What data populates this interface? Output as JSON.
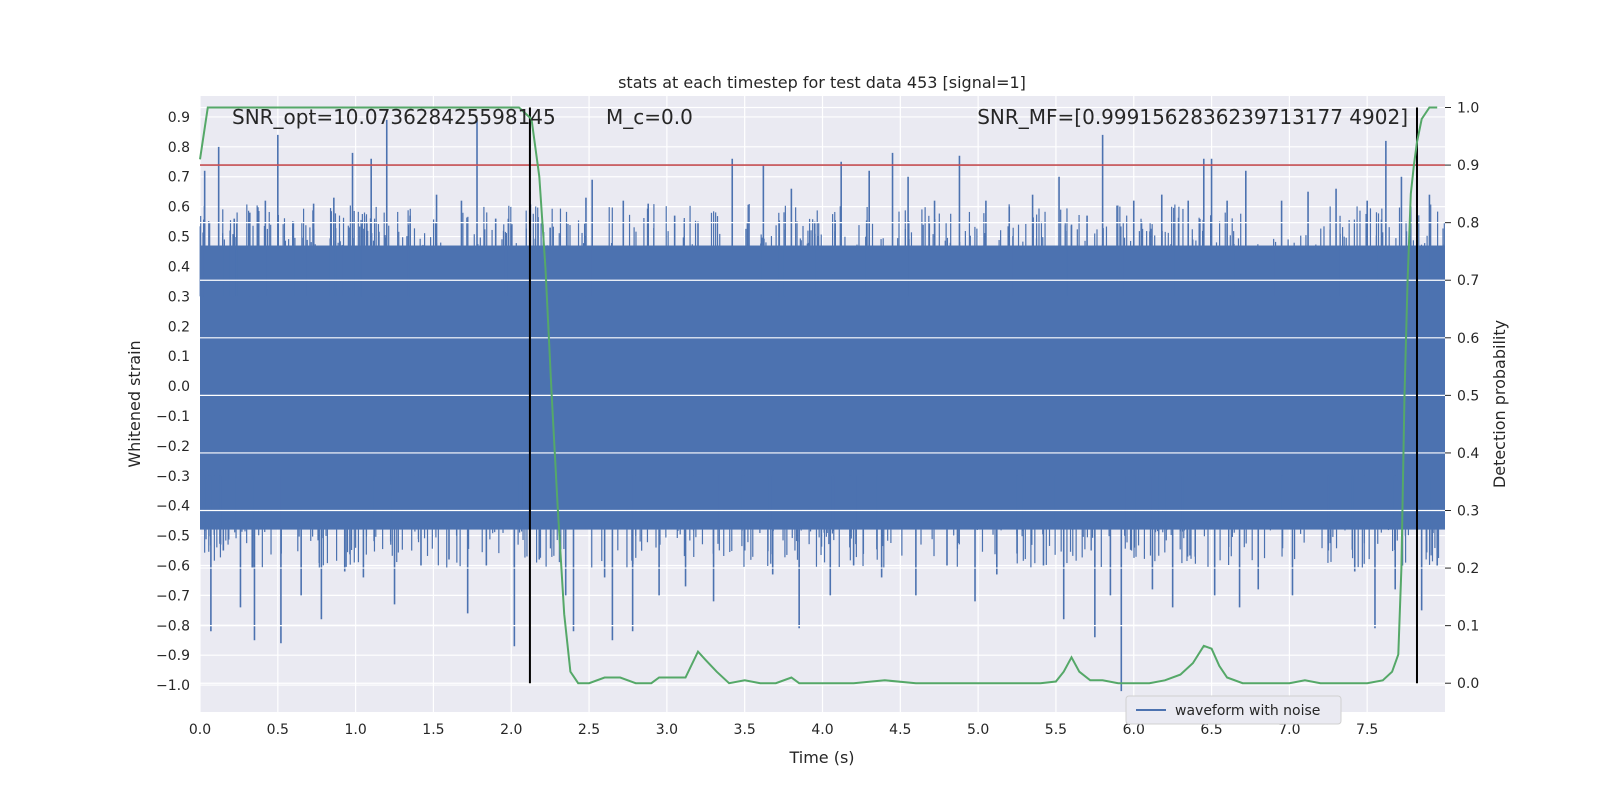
{
  "chart_data": {
    "type": "line",
    "title": "stats at each timestep for test data 453 [signal=1]",
    "xlabel": "Time (s)",
    "ylabel": "Whitened strain",
    "y2label": "Detection probability",
    "xlim": [
      0.0,
      8.0
    ],
    "ylim": [
      -1.09,
      0.97
    ],
    "y2lim": [
      -0.05,
      1.02
    ],
    "xticks": [
      "0.0",
      "0.5",
      "1.0",
      "1.5",
      "2.0",
      "2.5",
      "3.0",
      "3.5",
      "4.0",
      "4.5",
      "5.0",
      "5.5",
      "6.0",
      "6.5",
      "7.0",
      "7.5"
    ],
    "yticks": [
      "0.9",
      "0.8",
      "0.7",
      "0.6",
      "0.5",
      "0.4",
      "0.3",
      "0.2",
      "0.1",
      "0.0",
      "−0.1",
      "−0.2",
      "−0.3",
      "−0.4",
      "−0.5",
      "−0.6",
      "−0.7",
      "−0.8",
      "−0.9",
      "−1.0"
    ],
    "y2ticks": [
      "1.0",
      "0.9",
      "0.8",
      "0.7",
      "0.6",
      "0.5",
      "0.4",
      "0.3",
      "0.2",
      "0.1",
      "0.0"
    ],
    "annotations": {
      "snr_opt": "SNR_opt=10.073628425598145",
      "mc": "M_c=0.0",
      "overlap": "SNR_MF=[0.9991562836239713177 4902]"
    },
    "legend": {
      "label": "waveform with noise",
      "position": "lower right"
    },
    "threshold": 0.9,
    "vlines": [
      2.12,
      7.82
    ],
    "grid": true,
    "series": [
      {
        "name": "waveform with noise",
        "color": "#4c72b0",
        "axis": "left",
        "spikes": [
          {
            "x": 0.03,
            "y": 0.72
          },
          {
            "x": 0.05,
            "y": 0.45
          },
          {
            "x": 0.07,
            "y": -0.82
          },
          {
            "x": 0.12,
            "y": 0.8
          },
          {
            "x": 0.15,
            "y": -0.55
          },
          {
            "x": 0.22,
            "y": 0.56
          },
          {
            "x": 0.26,
            "y": -0.74
          },
          {
            "x": 0.32,
            "y": 0.58
          },
          {
            "x": 0.35,
            "y": -0.85
          },
          {
            "x": 0.42,
            "y": 0.62
          },
          {
            "x": 0.5,
            "y": 0.84
          },
          {
            "x": 0.52,
            "y": -0.86
          },
          {
            "x": 0.6,
            "y": 0.55
          },
          {
            "x": 0.65,
            "y": -0.7
          },
          {
            "x": 0.73,
            "y": 0.61
          },
          {
            "x": 0.78,
            "y": -0.78
          },
          {
            "x": 0.86,
            "y": 0.63
          },
          {
            "x": 0.93,
            "y": -0.62
          },
          {
            "x": 0.98,
            "y": 0.78
          },
          {
            "x": 1.05,
            "y": -0.64
          },
          {
            "x": 1.1,
            "y": 0.76
          },
          {
            "x": 1.2,
            "y": 0.89
          },
          {
            "x": 1.25,
            "y": -0.73
          },
          {
            "x": 1.35,
            "y": 0.57
          },
          {
            "x": 1.42,
            "y": -0.6
          },
          {
            "x": 1.52,
            "y": 0.64
          },
          {
            "x": 1.6,
            "y": -0.58
          },
          {
            "x": 1.68,
            "y": 0.62
          },
          {
            "x": 1.72,
            "y": -0.76
          },
          {
            "x": 1.78,
            "y": 0.89
          },
          {
            "x": 1.84,
            "y": -0.6
          },
          {
            "x": 1.9,
            "y": 0.56
          },
          {
            "x": 2.0,
            "y": 0.53
          },
          {
            "x": 2.02,
            "y": -0.87
          },
          {
            "x": 2.12,
            "y": 0.65
          },
          {
            "x": 2.18,
            "y": -0.58
          },
          {
            "x": 2.25,
            "y": 0.53
          },
          {
            "x": 2.35,
            "y": -0.7
          },
          {
            "x": 2.4,
            "y": -0.82
          },
          {
            "x": 2.48,
            "y": 0.63
          },
          {
            "x": 2.52,
            "y": 0.69
          },
          {
            "x": 2.6,
            "y": -0.64
          },
          {
            "x": 2.65,
            "y": -0.85
          },
          {
            "x": 2.72,
            "y": 0.62
          },
          {
            "x": 2.78,
            "y": -0.82
          },
          {
            "x": 2.88,
            "y": 0.61
          },
          {
            "x": 2.95,
            "y": -0.7
          },
          {
            "x": 3.05,
            "y": 0.57
          },
          {
            "x": 3.12,
            "y": -0.67
          },
          {
            "x": 3.2,
            "y": 0.55
          },
          {
            "x": 3.3,
            "y": -0.72
          },
          {
            "x": 3.42,
            "y": 0.76
          },
          {
            "x": 3.5,
            "y": -0.55
          },
          {
            "x": 3.62,
            "y": 0.74
          },
          {
            "x": 3.68,
            "y": -0.63
          },
          {
            "x": 3.8,
            "y": 0.66
          },
          {
            "x": 3.85,
            "y": -0.81
          },
          {
            "x": 3.95,
            "y": 0.55
          },
          {
            "x": 4.05,
            "y": -0.7
          },
          {
            "x": 4.12,
            "y": 0.75
          },
          {
            "x": 4.2,
            "y": -0.6
          },
          {
            "x": 4.3,
            "y": 0.72
          },
          {
            "x": 4.38,
            "y": -0.64
          },
          {
            "x": 4.45,
            "y": 0.78
          },
          {
            "x": 4.55,
            "y": 0.7
          },
          {
            "x": 4.6,
            "y": -0.7
          },
          {
            "x": 4.72,
            "y": 0.62
          },
          {
            "x": 4.8,
            "y": -0.6
          },
          {
            "x": 4.88,
            "y": 0.77
          },
          {
            "x": 4.98,
            "y": -0.72
          },
          {
            "x": 5.05,
            "y": 0.62
          },
          {
            "x": 5.12,
            "y": -0.63
          },
          {
            "x": 5.2,
            "y": 0.6
          },
          {
            "x": 5.25,
            "y": -0.56
          },
          {
            "x": 5.35,
            "y": 0.64
          },
          {
            "x": 5.42,
            "y": -0.6
          },
          {
            "x": 5.52,
            "y": 0.7
          },
          {
            "x": 5.55,
            "y": -0.78
          },
          {
            "x": 5.6,
            "y": 0.54
          },
          {
            "x": 5.7,
            "y": 0.57
          },
          {
            "x": 5.75,
            "y": -0.84
          },
          {
            "x": 5.8,
            "y": 0.84
          },
          {
            "x": 5.85,
            "y": -0.7
          },
          {
            "x": 5.92,
            "y": -1.02
          },
          {
            "x": 6.0,
            "y": 0.62
          },
          {
            "x": 6.05,
            "y": 0.55
          },
          {
            "x": 6.12,
            "y": -0.68
          },
          {
            "x": 6.18,
            "y": 0.64
          },
          {
            "x": 6.25,
            "y": -0.74
          },
          {
            "x": 6.35,
            "y": 0.62
          },
          {
            "x": 6.45,
            "y": 0.76
          },
          {
            "x": 6.5,
            "y": 0.76
          },
          {
            "x": 6.52,
            "y": -0.7
          },
          {
            "x": 6.6,
            "y": 0.62
          },
          {
            "x": 6.68,
            "y": -0.74
          },
          {
            "x": 6.72,
            "y": 0.72
          },
          {
            "x": 6.8,
            "y": -0.68
          },
          {
            "x": 6.95,
            "y": 0.62
          },
          {
            "x": 7.02,
            "y": -0.7
          },
          {
            "x": 7.12,
            "y": 0.65
          },
          {
            "x": 7.25,
            "y": -0.55
          },
          {
            "x": 7.3,
            "y": 0.66
          },
          {
            "x": 7.42,
            "y": -0.62
          },
          {
            "x": 7.5,
            "y": 0.62
          },
          {
            "x": 7.55,
            "y": -0.81
          },
          {
            "x": 7.62,
            "y": 0.82
          },
          {
            "x": 7.68,
            "y": -0.68
          },
          {
            "x": 7.72,
            "y": 0.7
          },
          {
            "x": 7.78,
            "y": 0.6
          },
          {
            "x": 7.85,
            "y": -0.75
          },
          {
            "x": 7.9,
            "y": 0.64
          },
          {
            "x": 7.95,
            "y": -0.6
          }
        ]
      },
      {
        "name": "Detection probability",
        "color": "#55a868",
        "axis": "right",
        "x": [
          0.0,
          0.05,
          0.1,
          0.5,
          1.0,
          1.5,
          1.9,
          2.05,
          2.13,
          2.18,
          2.22,
          2.26,
          2.3,
          2.34,
          2.38,
          2.43,
          2.5,
          2.6,
          2.7,
          2.8,
          2.9,
          2.95,
          3.0,
          3.05,
          3.12,
          3.2,
          3.25,
          3.32,
          3.4,
          3.5,
          3.6,
          3.7,
          3.8,
          3.85,
          4.0,
          4.2,
          4.4,
          4.6,
          4.8,
          5.0,
          5.2,
          5.4,
          5.5,
          5.55,
          5.6,
          5.65,
          5.72,
          5.8,
          5.9,
          6.0,
          6.1,
          6.2,
          6.3,
          6.38,
          6.45,
          6.5,
          6.55,
          6.6,
          6.7,
          6.8,
          6.9,
          7.0,
          7.1,
          7.2,
          7.4,
          7.5,
          7.6,
          7.66,
          7.7,
          7.72,
          7.74,
          7.76,
          7.78,
          7.8,
          7.82,
          7.85,
          7.9,
          7.95
        ],
        "y": [
          0.91,
          1.0,
          1.0,
          1.0,
          1.0,
          1.0,
          1.0,
          1.0,
          0.98,
          0.88,
          0.72,
          0.5,
          0.3,
          0.12,
          0.02,
          0.0,
          0.0,
          0.01,
          0.01,
          0.0,
          0.0,
          0.01,
          0.01,
          0.01,
          0.01,
          0.055,
          0.04,
          0.02,
          0.0,
          0.005,
          0.0,
          0.0,
          0.01,
          0.0,
          0.0,
          0.0,
          0.005,
          0.0,
          0.0,
          0.0,
          0.0,
          0.0,
          0.003,
          0.02,
          0.045,
          0.02,
          0.005,
          0.005,
          0.0,
          0.0,
          0.0,
          0.005,
          0.015,
          0.035,
          0.065,
          0.06,
          0.03,
          0.01,
          0.0,
          0.0,
          0.0,
          0.0,
          0.005,
          0.0,
          0.0,
          0.0,
          0.005,
          0.02,
          0.05,
          0.2,
          0.5,
          0.7,
          0.85,
          0.9,
          0.94,
          0.98,
          1.0,
          1.0
        ]
      }
    ]
  }
}
